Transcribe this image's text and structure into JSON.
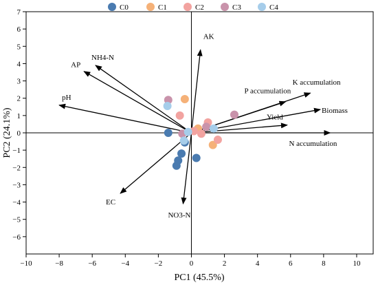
{
  "chart_data": {
    "type": "scatter",
    "xlabel": "PC1 (45.5%)",
    "ylabel": "PC2 (24.1%)",
    "xlim": [
      -10,
      11
    ],
    "ylim": [
      -7,
      7
    ],
    "xticks": [
      -10,
      -8,
      -6,
      -4,
      -2,
      0,
      2,
      4,
      6,
      8,
      10
    ],
    "yticks": [
      -6,
      -5,
      -4,
      -3,
      -2,
      -1,
      0,
      1,
      2,
      3,
      4,
      5,
      6,
      7
    ],
    "grid": false,
    "legend_position": "top",
    "series": [
      {
        "name": "C0",
        "color": "#4a7bb0",
        "points": [
          [
            -1.4,
            0.0
          ],
          [
            -0.6,
            -1.2
          ],
          [
            -0.8,
            -1.6
          ],
          [
            -0.9,
            -1.9
          ],
          [
            0.3,
            -1.45
          ],
          [
            -0.4,
            -0.55
          ]
        ]
      },
      {
        "name": "C1",
        "color": "#f5b178",
        "points": [
          [
            -0.4,
            1.95
          ],
          [
            0.4,
            0.25
          ],
          [
            1.3,
            -0.7
          ]
        ]
      },
      {
        "name": "C2",
        "color": "#f2a3a0",
        "points": [
          [
            -0.7,
            1.0
          ],
          [
            0.6,
            -0.05
          ],
          [
            1.0,
            0.6
          ],
          [
            1.6,
            -0.4
          ],
          [
            0.15,
            0.1
          ]
        ]
      },
      {
        "name": "C3",
        "color": "#c993ab",
        "points": [
          [
            -1.4,
            1.9
          ],
          [
            2.6,
            1.05
          ],
          [
            0.9,
            0.35
          ],
          [
            -0.55,
            -0.05
          ]
        ]
      },
      {
        "name": "C4",
        "color": "#a6cdea",
        "points": [
          [
            -1.45,
            1.55
          ],
          [
            -0.45,
            -0.45
          ],
          [
            1.35,
            0.25
          ],
          [
            -0.2,
            0.05
          ]
        ]
      }
    ],
    "vectors": [
      {
        "label": "AK",
        "x": 0.55,
        "y": 4.8
      },
      {
        "label": "NH4-N",
        "x": -5.8,
        "y": 3.9
      },
      {
        "label": "AP",
        "x": -6.5,
        "y": 3.55
      },
      {
        "label": "pH",
        "x": -8.0,
        "y": 1.6
      },
      {
        "label": "EC",
        "x": -4.3,
        "y": -3.5
      },
      {
        "label": "NO3-N",
        "x": -0.5,
        "y": -4.1
      },
      {
        "label": "P accumulation",
        "x": 5.7,
        "y": 1.8
      },
      {
        "label": "K accumulation",
        "x": 7.2,
        "y": 2.3
      },
      {
        "label": "Biomass",
        "x": 7.8,
        "y": 1.35
      },
      {
        "label": "Yield",
        "x": 5.8,
        "y": 0.45
      },
      {
        "label": "N accumulation",
        "x": 8.4,
        "y": 0.0
      }
    ]
  }
}
